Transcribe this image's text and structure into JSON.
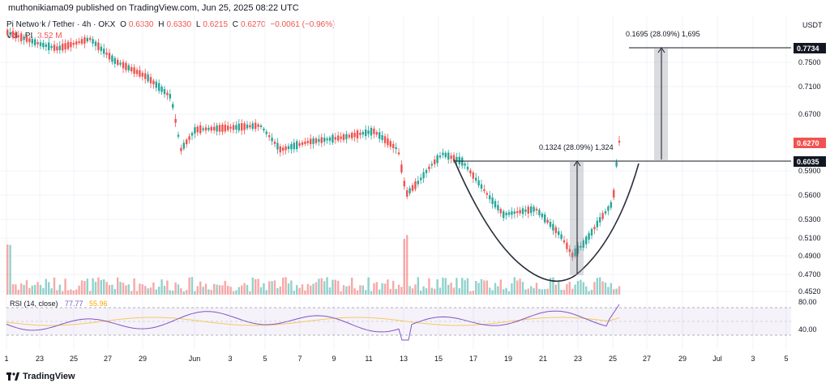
{
  "header": {
    "publisher_line": "muthonikiama09 published on TradingView.com, Jun 25, 2025 08:22 UTC"
  },
  "legend": {
    "symbol": "Pi Network / Tether · 4h · OKX",
    "o_label": "O",
    "o_value": "0.6330",
    "h_label": "H",
    "h_value": "0.6330",
    "l_label": "L",
    "l_value": "0.6215",
    "c_label": "C",
    "c_value": "0.6270",
    "change": "−0.0061 (−0.96%)",
    "vol_label": "Vol · PI",
    "vol_value": "3.52 M"
  },
  "rsi_legend": {
    "label": "RSI (14, close)",
    "value1": "77.77",
    "value2": "55.96"
  },
  "price_axis": {
    "currency": "USDT",
    "ticks": [
      "0.7500",
      "0.7100",
      "0.6700",
      "0.5900",
      "0.5600",
      "0.5300",
      "0.5100",
      "0.4900",
      "0.4700",
      "0.4520"
    ],
    "markers": {
      "target": "0.7734",
      "current": "0.6270",
      "neckline": "0.6035"
    }
  },
  "rsi_axis": {
    "ticks": [
      "80.00",
      "40.00"
    ]
  },
  "time_axis": {
    "ticks": [
      "1",
      "23",
      "25",
      "27",
      "29",
      "Jun",
      "3",
      "5",
      "7",
      "9",
      "11",
      "13",
      "15",
      "17",
      "19",
      "21",
      "23",
      "25",
      "27",
      "29",
      "Jul",
      "3",
      "5"
    ]
  },
  "annotations": {
    "measure_lower": "0.1324 (28.09%) 1,324",
    "measure_upper": "0.1695 (28.09%) 1,695"
  },
  "colors": {
    "up": "#26a69a",
    "down": "#ef5350",
    "rsi": "#7e57c2",
    "rsi_ma": "#f7c95c",
    "line": "#131722"
  },
  "footer": {
    "brand": "TradingView"
  }
}
